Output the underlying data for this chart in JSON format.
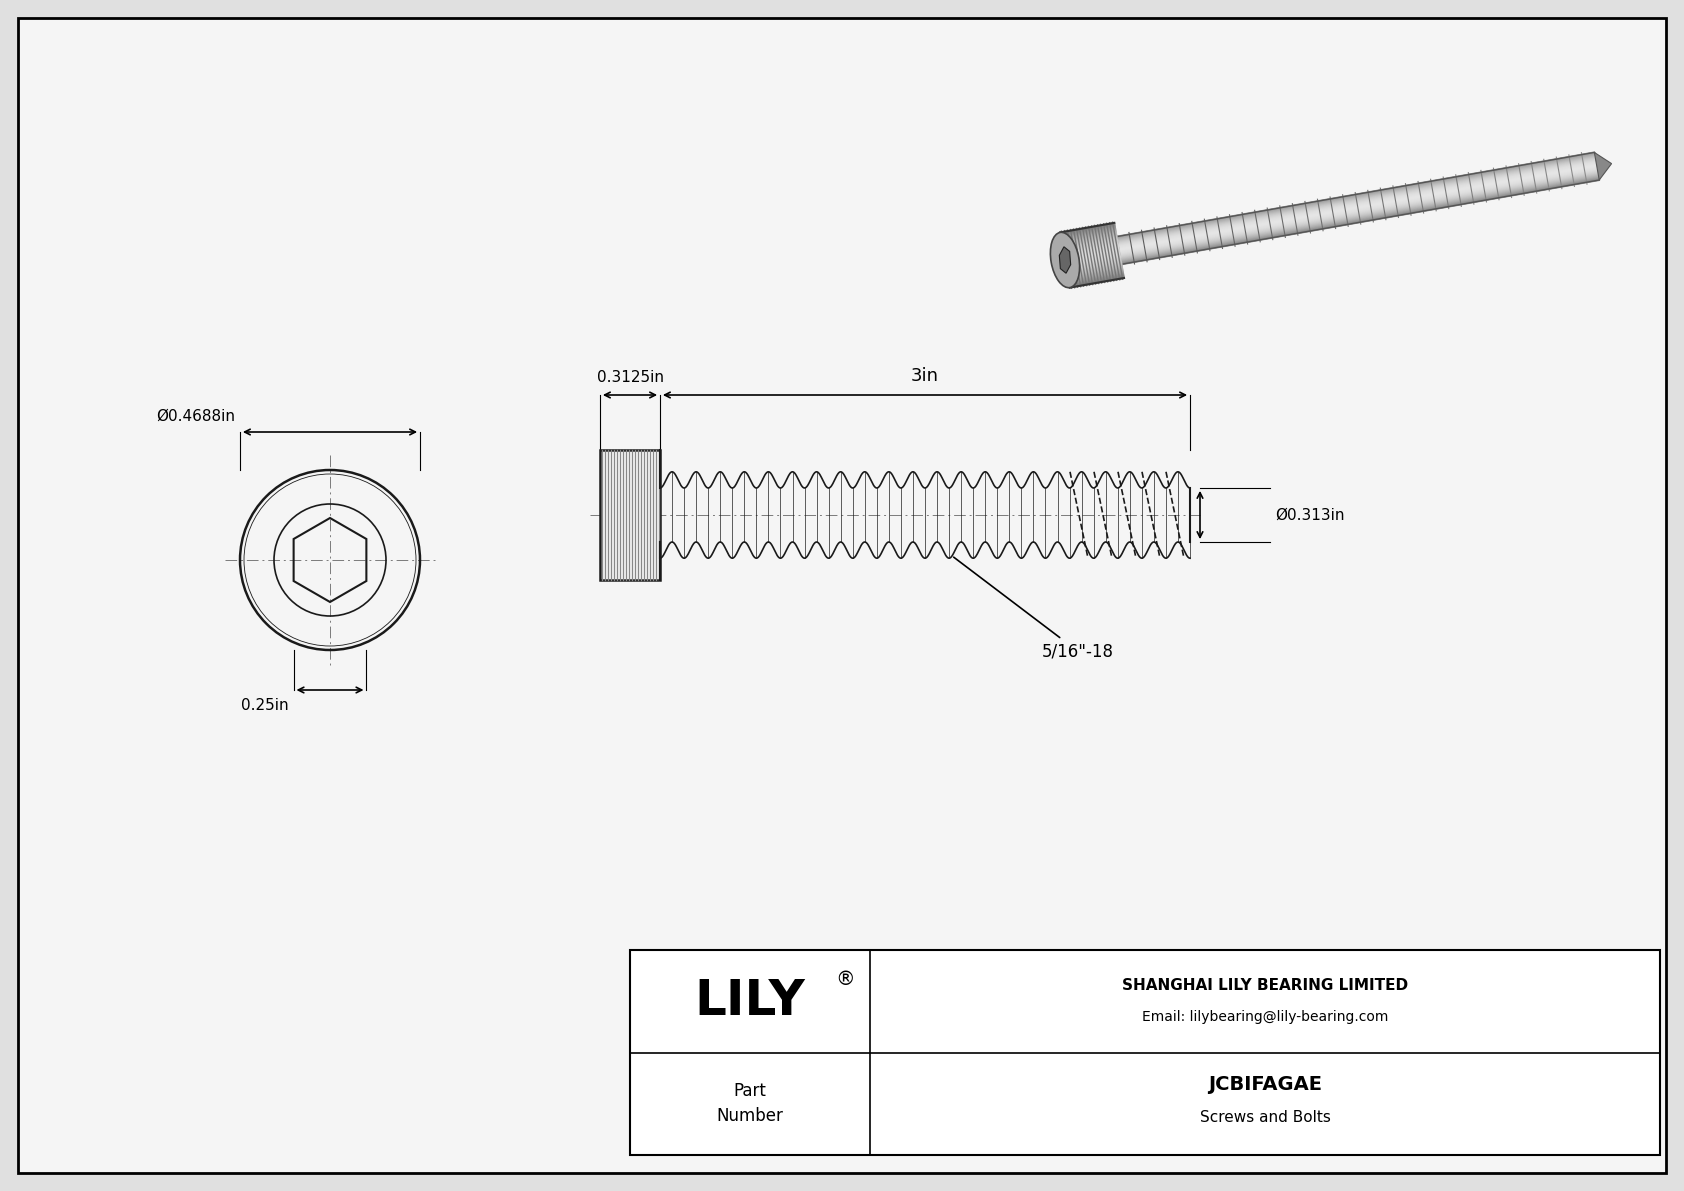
{
  "bg_color": "#e0e0e0",
  "drawing_bg": "#f5f5f5",
  "border_color": "#000000",
  "line_color": "#1a1a1a",
  "dim_color": "#000000",
  "title_company": "SHANGHAI LILY BEARING LIMITED",
  "title_email": "Email: lilybearing@lily-bearing.com",
  "part_label": "Part\nNumber",
  "part_number": "JCBIFAGAE",
  "part_category": "Screws and Bolts",
  "brand": "LILY",
  "registered": "®",
  "dim_diameter_head": "Ø0.4688in",
  "dim_height_head": "0.25in",
  "dim_length_thread": "3in",
  "dim_shank": "0.3125in",
  "dim_thread_dia": "Ø0.313in",
  "dim_thread_label": "5/16\"-18"
}
